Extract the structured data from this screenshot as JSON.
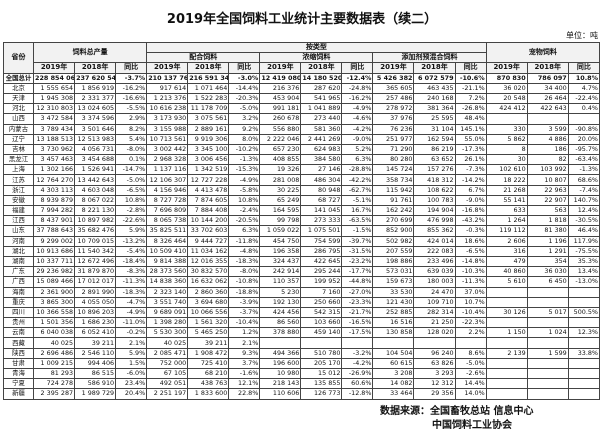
{
  "title": "2019年全国饲料工业统计主要数据表（续二）",
  "unit": "单位：吨",
  "table": {
    "header": {
      "province": "省份",
      "total": "饲料总产量",
      "by_type": "按类型",
      "types": [
        "配合饲料",
        "浓缩饲料",
        "添加剂预混合饲料"
      ],
      "pet": "宠物饲料",
      "sub": [
        "2019年",
        "2018年",
        "同比"
      ]
    },
    "rows": [
      [
        "全国总计",
        "228 854 061",
        "237 620 549",
        "-3.7%",
        "210 137 769",
        "216 591 342",
        "-3.0%",
        "12 419 080",
        "14 180 520",
        "-12.4%",
        "5 426 382",
        "6 072 579",
        "-10.6%",
        "870 830",
        "786 097",
        "10.8%"
      ],
      [
        "北京",
        "1 555 654",
        "1 856 919",
        "-16.2%",
        "917 614",
        "1 071 464",
        "-14.4%",
        "216 376",
        "287 620",
        "-24.8%",
        "365 605",
        "463 435",
        "-21.1%",
        "36 020",
        "34 400",
        "4.7%"
      ],
      [
        "天津",
        "1 945 308",
        "2 331 377",
        "-16.6%",
        "1 213 376",
        "1 522 283",
        "-20.3%",
        "453 904",
        "541 965",
        "-16.2%",
        "257 486",
        "240 168",
        "7.2%",
        "20 548",
        "26 464",
        "-22.4%"
      ],
      [
        "河北",
        "12 310 803",
        "13 024 605",
        "-5.5%",
        "10 616 238",
        "11 178 709",
        "-5.0%",
        "991 181",
        "1 041 889",
        "-4.9%",
        "278 972",
        "381 364",
        "-26.8%",
        "424 412",
        "422 643",
        "0.4%"
      ],
      [
        "山西",
        "3 472 584",
        "3 374 596",
        "2.9%",
        "3 173 930",
        "3 075 561",
        "3.2%",
        "260 678",
        "273 440",
        "-4.6%",
        "37 976",
        "25 595",
        "48.4%",
        null,
        null,
        null
      ],
      [
        "内蒙古",
        "3 789 434",
        "3 501 646",
        "8.2%",
        "3 155 988",
        "2 889 161",
        "9.2%",
        "556 880",
        "581 360",
        "-4.2%",
        "76 236",
        "31 104",
        "145.1%",
        "330",
        "3 599",
        "-90.8%"
      ],
      [
        "辽宁",
        "13 188 513",
        "12 513 983",
        "5.4%",
        "10 713 561",
        "9 919 306",
        "8.0%",
        "2 222 046",
        "2 441 269",
        "-9.0%",
        "251 977",
        "162 594",
        "55.0%",
        "5 862",
        "4 886",
        "20.0%"
      ],
      [
        "吉林",
        "3 730 962",
        "4 056 731",
        "-8.0%",
        "3 002 442",
        "3 345 100",
        "-10.2%",
        "657 230",
        "624 983",
        "5.2%",
        "71 290",
        "86 219",
        "-17.3%",
        "8",
        "186",
        "-95.7%"
      ],
      [
        "黑龙江",
        "3 457 463",
        "3 454 688",
        "0.1%",
        "2 968 328",
        "3 006 456",
        "-1.3%",
        "408 855",
        "384 580",
        "6.3%",
        "80 280",
        "63 652",
        "26.1%",
        "30",
        "82",
        "-63.4%"
      ],
      [
        "上海",
        "1 302 166",
        "1 526 941",
        "-14.7%",
        "1 137 116",
        "1 342 519",
        "-15.3%",
        "19 326",
        "27 146",
        "-28.8%",
        "145 724",
        "157 276",
        "-7.3%",
        "102 610",
        "103 992",
        "-1.3%"
      ],
      [
        "江苏",
        "12 764 270",
        "13 442 643",
        "-5.0%",
        "12 106 307",
        "12 727 228",
        "-4.9%",
        "281 008",
        "486 304",
        "-42.2%",
        "358 734",
        "418 312",
        "-14.2%",
        "18 222",
        "10 807",
        "68.6%"
      ],
      [
        "浙江",
        "4 303 113",
        "4 603 048",
        "-6.5%",
        "4 156 946",
        "4 413 478",
        "-5.8%",
        "30 225",
        "80 948",
        "-62.7%",
        "115 942",
        "108 622",
        "6.7%",
        "21 268",
        "22 963",
        "-7.4%"
      ],
      [
        "安徽",
        "8 939 879",
        "8 067 022",
        "10.8%",
        "8 727 728",
        "7 874 605",
        "10.8%",
        "65 249",
        "68 727",
        "-5.1%",
        "91 761",
        "100 783",
        "-9.0%",
        "55 141",
        "22 907",
        "140.7%"
      ],
      [
        "福建",
        "7 994 282",
        "8 221 130",
        "-2.8%",
        "7 696 809",
        "7 884 408",
        "-2.4%",
        "164 595",
        "141 045",
        "16.7%",
        "162 242",
        "194 904",
        "-16.8%",
        "633",
        "563",
        "12.4%"
      ],
      [
        "江西",
        "8 437 901",
        "10 897 982",
        "-22.6%",
        "8 065 738",
        "10 144 200",
        "-20.5%",
        "99 798",
        "273 333",
        "-63.5%",
        "270 699",
        "476 998",
        "-43.2%",
        "1 264",
        "1 818",
        "-30.5%"
      ],
      [
        "山东",
        "37 788 643",
        "35 682 476",
        "5.9%",
        "35 825 511",
        "33 702 603",
        "6.3%",
        "1 059 022",
        "1 075 501",
        "-1.5%",
        "852 900",
        "855 362",
        "-0.3%",
        "119 112",
        "81 380",
        "46.4%"
      ],
      [
        "河南",
        "9 299 002",
        "10 709 015",
        "-13.2%",
        "8 326 464",
        "9 444 727",
        "-11.8%",
        "454 750",
        "754 599",
        "-39.7%",
        "502 982",
        "424 014",
        "18.6%",
        "2 606",
        "1 196",
        "117.9%"
      ],
      [
        "湖北",
        "10 913 686",
        "11 540 342",
        "-5.4%",
        "10 509 410",
        "11 034 162",
        "-4.8%",
        "196 358",
        "286 795",
        "-31.5%",
        "207 559",
        "222 083",
        "-6.5%",
        "316",
        "1 291",
        "-75.5%"
      ],
      [
        "湖南",
        "10 337 711",
        "12 672 496",
        "-18.4%",
        "9 814 388",
        "12 016 355",
        "-18.3%",
        "324 437",
        "422 645",
        "-23.2%",
        "198 886",
        "233 496",
        "-14.8%",
        "479",
        "354",
        "35.3%"
      ],
      [
        "广东",
        "29 236 982",
        "31 879 870",
        "-8.3%",
        "28 373 560",
        "30 832 570",
        "-8.0%",
        "242 914",
        "295 244",
        "-17.7%",
        "573 031",
        "639 039",
        "-10.3%",
        "40 860",
        "36 030",
        "13.4%"
      ],
      [
        "广西",
        "15 089 466",
        "17 012 017",
        "-11.3%",
        "14 838 360",
        "16 632 062",
        "-10.8%",
        "110 357",
        "199 952",
        "-44.8%",
        "159 673",
        "180 003",
        "-11.3%",
        "5 610",
        "6 450",
        "-13.0%"
      ],
      [
        "海南",
        "2 361 900",
        "2 891 990",
        "-18.3%",
        "2 323 140",
        "2 860 360",
        "-18.8%",
        "5 230",
        "7 160",
        "-27.0%",
        "33 530",
        "24 470",
        "37.0%",
        null,
        null,
        null
      ],
      [
        "重庆",
        "3 865 300",
        "4 055 050",
        "-4.7%",
        "3 551 740",
        "3 694 680",
        "-3.9%",
        "192 130",
        "250 660",
        "-23.3%",
        "121 430",
        "109 710",
        "10.7%",
        null,
        null,
        null
      ],
      [
        "四川",
        "10 366 558",
        "10 896 203",
        "-4.9%",
        "9 689 091",
        "10 066 556",
        "-3.7%",
        "424 456",
        "542 315",
        "-21.7%",
        "252 885",
        "282 314",
        "-10.4%",
        "30 126",
        "5 017",
        "500.5%"
      ],
      [
        "贵州",
        "1 501 356",
        "1 686 230",
        "-11.0%",
        "1 398 280",
        "1 561 320",
        "-10.4%",
        "86 560",
        "103 660",
        "-16.5%",
        "16 516",
        "21 250",
        "-22.3%",
        null,
        null,
        null
      ],
      [
        "云南",
        "6 040 038",
        "6 052 410",
        "-0.2%",
        "5 530 300",
        "5 465 250",
        "1.2%",
        "378 880",
        "459 140",
        "-17.5%",
        "130 858",
        "128 020",
        "2.2%",
        "1 150",
        "1 024",
        "12.3%"
      ],
      [
        "西藏",
        "40 025",
        "39 211",
        "2.1%",
        "40 025",
        "39 211",
        "2.1%",
        null,
        null,
        null,
        null,
        null,
        null,
        null,
        null,
        null
      ],
      [
        "陕西",
        "2 696 486",
        "2 546 110",
        "5.9%",
        "2 085 471",
        "1 908 472",
        "9.3%",
        "494 366",
        "510 780",
        "-3.2%",
        "104 504",
        "96 240",
        "8.6%",
        "2 139",
        "1 599",
        "33.8%"
      ],
      [
        "甘肃",
        "1 009 215",
        "994 406",
        "1.5%",
        "752 000",
        "725 410",
        "3.7%",
        "196 600",
        "205 170",
        "-4.2%",
        "60 615",
        "63 826",
        "-5.0%",
        null,
        null,
        null
      ],
      [
        "青海",
        "81 293",
        "86 515",
        "-6.0%",
        "67 105",
        "68 210",
        "-1.6%",
        "10 980",
        "15 012",
        "-26.9%",
        "3 208",
        "3 293",
        "-2.6%",
        null,
        null,
        null
      ],
      [
        "宁夏",
        "724 278",
        "586 910",
        "23.4%",
        "492 051",
        "438 763",
        "12.1%",
        "218 143",
        "135 855",
        "60.6%",
        "14 082",
        "12 312",
        "14.4%",
        null,
        null,
        null
      ],
      [
        "新疆",
        "2 395 287",
        "1 989 729",
        "20.4%",
        "2 251 197",
        "1 833 600",
        "22.8%",
        "110 606",
        "126 773",
        "-12.8%",
        "33 464",
        "29 356",
        "14.0%",
        null,
        null,
        null
      ]
    ]
  },
  "source": {
    "label": "数据来源：",
    "lines": [
      "全国畜牧总站 信息中心",
      "中国饲料工业协会"
    ]
  }
}
